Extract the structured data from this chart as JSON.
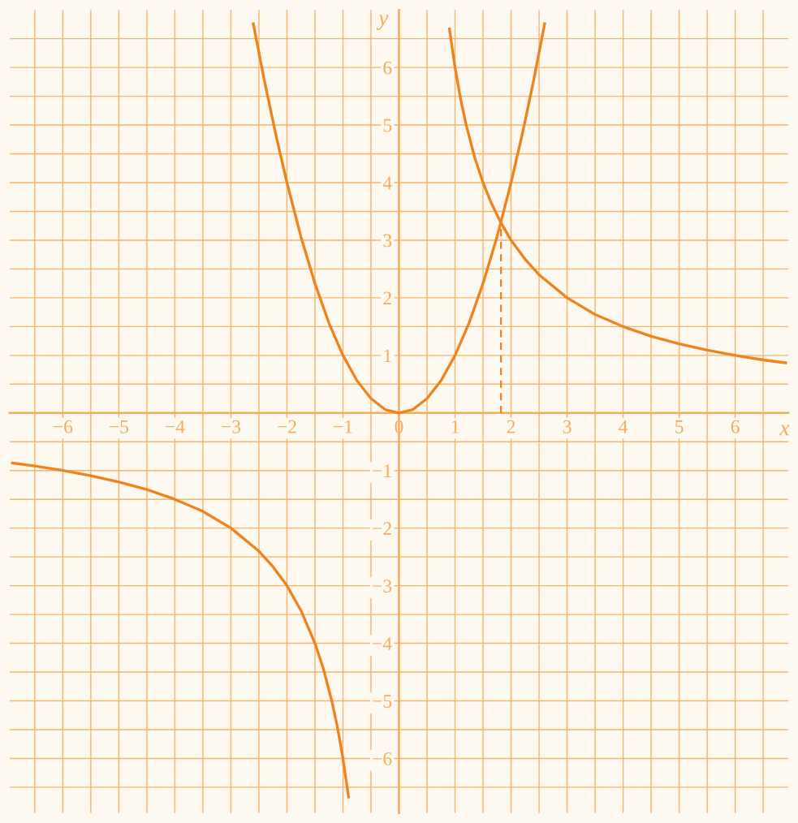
{
  "chart_data": {
    "type": "line",
    "xlabel": "x",
    "ylabel": "y",
    "xlim": [
      -6.95,
      6.95
    ],
    "ylim": [
      -6.95,
      7.0
    ],
    "xticks": [
      {
        "value": -6.5,
        "label": null
      },
      -6,
      {
        "value": -5.5,
        "label": null
      },
      -5,
      {
        "value": -4.5,
        "label": null
      },
      -4,
      {
        "value": -3.5,
        "label": null
      },
      -3,
      {
        "value": -2.5,
        "label": null
      },
      -2,
      {
        "value": -1.5,
        "label": null
      },
      -1,
      {
        "value": -0.5,
        "label": null
      },
      0,
      {
        "value": 0.5,
        "label": null
      },
      1,
      {
        "value": 1.5,
        "label": null
      },
      2,
      {
        "value": 2.5,
        "label": null
      },
      3,
      {
        "value": 3.5,
        "label": null
      },
      4,
      {
        "value": 4.5,
        "label": null
      },
      5,
      {
        "value": 5.5,
        "label": null
      },
      6,
      {
        "value": 6.5,
        "label": null
      }
    ],
    "yticks": [
      {
        "value": -6.5,
        "label": null
      },
      -6,
      {
        "value": -5.5,
        "label": null
      },
      -5,
      {
        "value": -4.5,
        "label": null
      },
      -4,
      {
        "value": -3.5,
        "label": null
      },
      -3,
      {
        "value": -2.5,
        "label": null
      },
      -2,
      {
        "value": -1.5,
        "label": null
      },
      -1,
      {
        "value": -0.5,
        "label": null
      },
      {
        "value": 0,
        "label": null
      },
      {
        "value": 0.5,
        "label": null
      },
      1,
      {
        "value": 1.5,
        "label": null
      },
      2,
      {
        "value": 2.5,
        "label": null
      },
      3,
      {
        "value": 3.5,
        "label": null
      },
      4,
      {
        "value": 4.5,
        "label": null
      },
      5,
      {
        "value": 5.5,
        "label": null
      },
      6,
      {
        "value": 6.5,
        "label": null
      }
    ],
    "grid": true,
    "marker": "none",
    "line_style": "solid",
    "series": [
      {
        "color": "#ee8420",
        "x": [
          -2.6,
          -2.4,
          -2.2,
          -2,
          -1.75,
          -1.5,
          -1.25,
          -1,
          -0.75,
          -0.5,
          -0.25,
          0,
          0.25,
          0.5,
          0.75,
          1,
          1.25,
          1.5,
          1.75,
          2,
          2.2,
          2.4,
          2.6
        ],
        "values": [
          6.76,
          5.76,
          4.84,
          4,
          3.06,
          2.25,
          1.56,
          1,
          0.56,
          0.25,
          0.06,
          0,
          0.06,
          0.25,
          0.56,
          1,
          1.56,
          2.25,
          3.06,
          4,
          4.84,
          5.76,
          6.76
        ]
      },
      {
        "color": "#ee8420",
        "x": [
          0.9,
          1,
          1.1,
          1.2,
          1.35,
          1.5,
          1.65,
          1.82,
          2,
          2.25,
          2.5,
          3,
          3.5,
          4,
          4.5,
          5,
          5.5,
          6,
          6.5,
          6.9
        ],
        "values": [
          6.67,
          6,
          5.45,
          5,
          4.44,
          4,
          3.64,
          3.3,
          3,
          2.67,
          2.4,
          2,
          1.71,
          1.5,
          1.33,
          1.2,
          1.09,
          1,
          0.92,
          0.87
        ]
      },
      {
        "color": "#ee8420",
        "x": [
          -6.9,
          -6.5,
          -6,
          -5.5,
          -5,
          -4.5,
          -4,
          -3.5,
          -3,
          -2.5,
          -2.25,
          -2,
          -1.75,
          -1.5,
          -1.35,
          -1.2,
          -1.1,
          -1,
          -0.9
        ],
        "values": [
          -0.87,
          -0.92,
          -1,
          -1.09,
          -1.2,
          -1.33,
          -1.5,
          -1.71,
          -2,
          -2.4,
          -2.67,
          -3,
          -3.43,
          -4,
          -4.44,
          -5,
          -5.45,
          -6,
          -6.67
        ]
      },
      {
        "color": "#ee8420",
        "line_style": "dashed",
        "x": [
          1.82,
          1.82
        ],
        "values": [
          0,
          3.3
        ]
      }
    ]
  }
}
